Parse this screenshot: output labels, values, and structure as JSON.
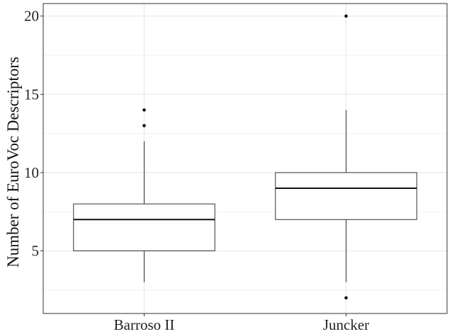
{
  "chart_data": {
    "type": "boxplot",
    "title": "",
    "xlabel": "",
    "ylabel": "Number of EuroVoc Descriptors",
    "ylim": [
      1,
      20.8
    ],
    "y_ticks": [
      5,
      10,
      15,
      20
    ],
    "grid": true,
    "categories": [
      "Barroso II",
      "Juncker"
    ],
    "boxes": [
      {
        "category": "Barroso II",
        "whisker_low": 3,
        "q1": 5,
        "median": 7,
        "q3": 8,
        "whisker_high": 12,
        "outliers": [
          13,
          14
        ]
      },
      {
        "category": "Juncker",
        "whisker_low": 3,
        "q1": 7,
        "median": 9,
        "q3": 10,
        "whisker_high": 14,
        "outliers": [
          2,
          20
        ]
      }
    ],
    "colors": {
      "grid": "#ebebeb",
      "box_stroke": "#333333",
      "panel_border": "#333333",
      "fill": "#ffffff"
    }
  }
}
